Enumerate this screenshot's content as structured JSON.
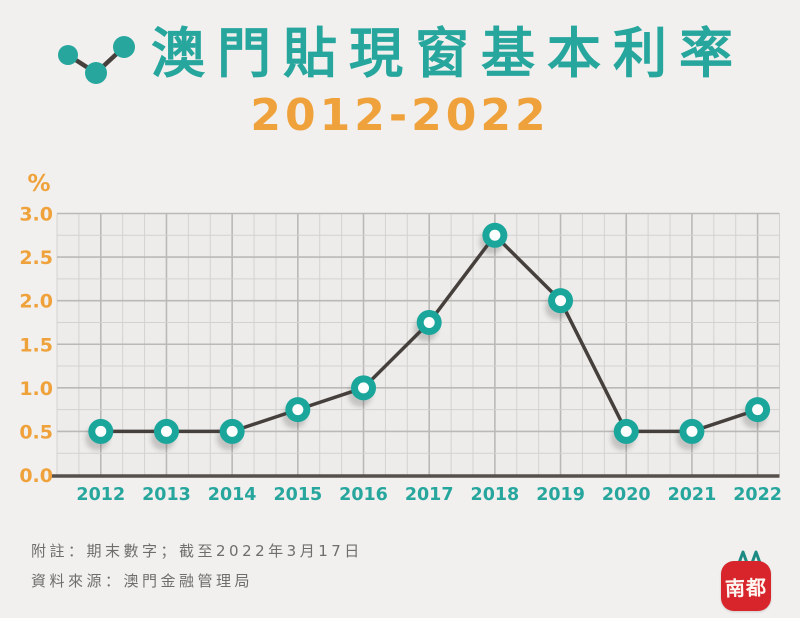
{
  "header": {
    "title": "澳門貼現窗基本利率",
    "subtitle": "2012-2022"
  },
  "chart_data": {
    "type": "line",
    "categories": [
      "2012",
      "2013",
      "2014",
      "2015",
      "2016",
      "2017",
      "2018",
      "2019",
      "2020",
      "2021",
      "2022"
    ],
    "values": [
      0.5,
      0.5,
      0.5,
      0.75,
      1.0,
      1.75,
      2.75,
      2.0,
      0.5,
      0.5,
      0.75
    ],
    "title": "澳門貼現窗基本利率 2012-2022",
    "xlabel": "",
    "ylabel": "%",
    "ylim": [
      0,
      3.0
    ],
    "ytick_labels": [
      "3.0",
      "2.5",
      "2.0",
      "1.5",
      "1.0",
      "0.5",
      "0.0"
    ],
    "grid": true,
    "legend": false
  },
  "footnotes": {
    "note": "附註：期末數字；截至2022年3月17日",
    "source": "資料來源：澳門金融管理局"
  },
  "logo": {
    "text": "南都"
  },
  "colors": {
    "teal": "#27a69e",
    "orange": "#efa23c",
    "line": "#46403d",
    "axis": "#56504c",
    "grid_minor": "#d3d2d0",
    "grid_major": "#bab9b7",
    "plot_bg": "#edecea",
    "page_bg": "#f1f0ee",
    "marker_fill": "#1ba69c",
    "marker_center": "#fcfefd",
    "footer_gray": "#6f6e6d",
    "logo_red": "#d7252b"
  }
}
